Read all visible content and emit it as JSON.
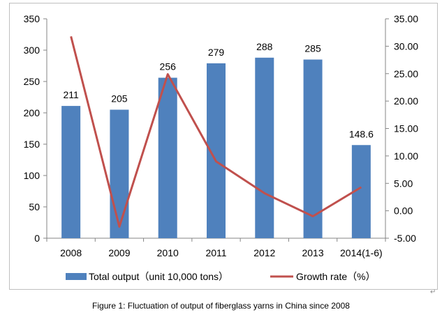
{
  "chart_data": {
    "type": "bar",
    "title": "",
    "categories": [
      "2008",
      "2009",
      "2010",
      "2011",
      "2012",
      "2013",
      "2014(1-6)"
    ],
    "series": [
      {
        "name": "Total output（unit 10,000 tons）",
        "type": "bar",
        "axis": "left",
        "color": "#4f81bd",
        "values": [
          211,
          205,
          256,
          279,
          288,
          285,
          148.6
        ],
        "labels": [
          "211",
          "205",
          "256",
          "279",
          "288",
          "285",
          "148.6"
        ]
      },
      {
        "name": "Growth rate（%）",
        "type": "line",
        "axis": "right",
        "color": "#c0504d",
        "values": [
          31.8,
          -2.9,
          24.9,
          9.0,
          3.2,
          -1.0,
          4.3
        ]
      }
    ],
    "y_left": {
      "min": 0,
      "max": 350,
      "step": 50,
      "ticks": [
        "0",
        "50",
        "100",
        "150",
        "200",
        "250",
        "300",
        "350"
      ]
    },
    "y_right": {
      "min": -5,
      "max": 35,
      "step": 5,
      "ticks": [
        "-5.00",
        "0.00",
        "5.00",
        "10.00",
        "15.00",
        "20.00",
        "25.00",
        "30.00",
        "35.00"
      ]
    },
    "grid": false,
    "legend": "bottom"
  },
  "caption": "Figure 1:  Fluctuation of output of fiberglass yarns in China since 2008",
  "return_mark": "↵"
}
